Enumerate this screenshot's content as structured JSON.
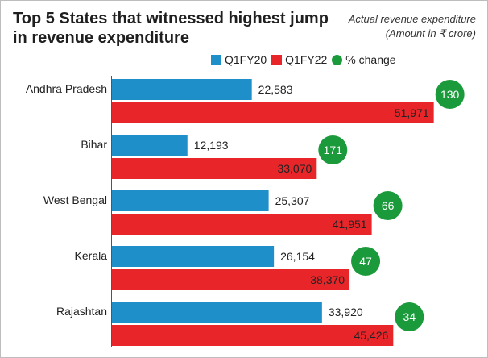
{
  "chart_data": {
    "type": "bar",
    "orientation": "horizontal",
    "title": "Top 5 States that witnessed highest jump in revenue expenditure",
    "subtitle_lines": [
      "Actual revenue expenditure",
      "(Amount in ₹ crore)"
    ],
    "categories": [
      "Andhra Pradesh",
      "Bihar",
      "West Bengal",
      "Kerala",
      "Rajashtan"
    ],
    "series": [
      {
        "name": "Q1FY20",
        "color": "#1f8fc9",
        "values": [
          22583,
          12193,
          25307,
          26154,
          33920
        ]
      },
      {
        "name": "Q1FY22",
        "color": "#e8262a",
        "values": [
          51971,
          33070,
          41951,
          38370,
          45426
        ]
      }
    ],
    "value_labels": {
      "Q1FY20": [
        "22,583",
        "12,193",
        "25,307",
        "26,154",
        "33,920"
      ],
      "Q1FY22": [
        "51,971",
        "33,070",
        "41,951",
        "38,370",
        "45,426"
      ]
    },
    "pct_change_label": "% change",
    "pct_change_color": "#1a9a3a",
    "pct_change": [
      130,
      171,
      66,
      47,
      34
    ],
    "legend_position": "top",
    "grid": false
  }
}
